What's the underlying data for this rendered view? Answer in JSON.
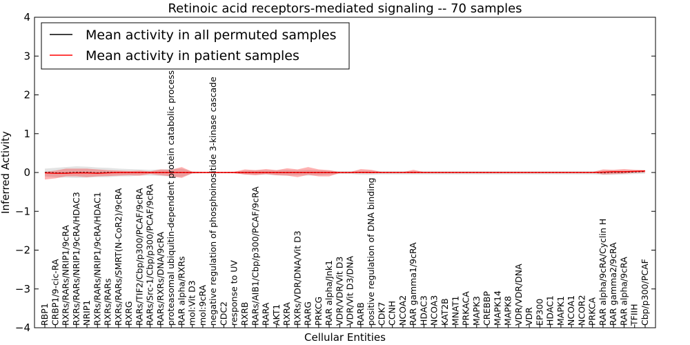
{
  "chart_data": {
    "type": "line",
    "title": "Retinoic acid receptors-mediated signaling -- 70 samples",
    "xlabel": "Cellular Entities",
    "ylabel": "Inferred Activity",
    "ylim": [
      -4,
      4
    ],
    "yticks": [
      4,
      3,
      2,
      1,
      0,
      -1,
      -2,
      -3,
      -4
    ],
    "ytick_labels": [
      "4",
      "3",
      "2",
      "1",
      "0",
      "−1",
      "−2",
      "−3",
      "−4"
    ],
    "grid": false,
    "legend_position": "top-left",
    "categories": [
      "RBP1",
      "CRBP1/9-cic-RA",
      "RXRs/RARs/NRIP1/9cRA",
      "RXRs/RARs/NRIP1/9cRA/HDAC3",
      "NRIP1",
      "RXRs/RARs/NRIP1/9cRA/HDAC1",
      "RXRs/RARs",
      "RXRs/RARs/SMRT(N-CoR2)/9cRA",
      "RXRG",
      "RARs/TIF2/Cbp/p300/PCAF/9cRA",
      "RARs/Src-1/Cbp/p300/PCAF/9cRA",
      "RARs/RXRs/DNA/9cRA",
      "proteasomal ubiquitin-dependent protein catabolic process",
      "RAR alpha/RXRs",
      "mol:Vit D3",
      "mol:9cRA",
      "negative regulation of phosphoinositide 3-kinase cascade",
      "CDC2",
      "response to UV",
      "RXRB",
      "RARs/AIB1/Cbp/p300/PCAF/9cRA",
      "RARA",
      "AKT1",
      "RXRA",
      "RXRs/VDR/DNA/Vit D3",
      "RARG",
      "PRKCG",
      "RAR alpha/Jnk1",
      "VDR/VDR/Vit D3",
      "VDR/Vit D3/DNA",
      "RARB",
      "positive regulation of DNA binding",
      "CDK7",
      "CCNH",
      "NCOA2",
      "RAR gamma1/9cRA",
      "HDAC3",
      "NCOA3",
      "KAT2B",
      "MNAT1",
      "PRKACA",
      "MAPK3",
      "CREBBP",
      "MAPK14",
      "MAPK8",
      "VDR/VDR/DNA",
      "VDR",
      "EP300",
      "HDAC1",
      "MAPK1",
      "NCOA1",
      "NCOR2",
      "PRKCA",
      "RAR alpha/9cRA/Cyclin H",
      "RAR gamma2/9cRA",
      "RAR alpha/9cRA",
      "TFIIH",
      "Cbp/p300/PCAF"
    ],
    "series": [
      {
        "name": "Mean activity in all permuted samples",
        "color": "#000000",
        "values": [
          0.0,
          -0.01,
          -0.01,
          0.0,
          0.0,
          -0.01,
          0.0,
          0.0,
          0.0,
          0.0,
          0.0,
          0.0,
          0.0,
          0.0,
          0.0,
          0.0,
          0.0,
          0.0,
          0.0,
          0.0,
          0.0,
          0.0,
          0.0,
          0.0,
          0.0,
          0.0,
          0.0,
          0.0,
          0.0,
          0.0,
          0.0,
          0.0,
          0.0,
          0.0,
          0.0,
          0.0,
          0.0,
          0.0,
          0.0,
          0.0,
          0.0,
          0.0,
          0.0,
          0.0,
          0.0,
          0.0,
          0.0,
          0.0,
          0.0,
          0.0,
          0.0,
          0.0,
          0.0,
          0.0,
          0.01,
          0.01,
          0.02,
          0.03
        ],
        "band_low": [
          -0.1,
          -0.12,
          -0.13,
          -0.14,
          -0.13,
          -0.12,
          -0.12,
          -0.1,
          -0.1,
          -0.08,
          -0.08,
          -0.09,
          -0.1,
          -0.11,
          -0.03,
          -0.02,
          -0.02,
          -0.02,
          -0.02,
          -0.05,
          -0.06,
          -0.06,
          -0.07,
          -0.08,
          -0.07,
          -0.08,
          -0.07,
          -0.06,
          -0.04,
          -0.04,
          -0.06,
          -0.06,
          -0.05,
          -0.05,
          -0.05,
          -0.05,
          -0.05,
          -0.05,
          -0.05,
          -0.05,
          -0.05,
          -0.05,
          -0.05,
          -0.05,
          -0.05,
          -0.05,
          -0.05,
          -0.05,
          -0.05,
          -0.05,
          -0.05,
          -0.05,
          -0.05,
          -0.06,
          -0.06,
          -0.05,
          -0.04,
          -0.03
        ],
        "band_high": [
          0.1,
          0.12,
          0.14,
          0.16,
          0.15,
          0.13,
          0.12,
          0.1,
          0.09,
          0.08,
          0.07,
          0.08,
          0.09,
          0.1,
          0.03,
          0.02,
          0.02,
          0.02,
          0.02,
          0.05,
          0.06,
          0.06,
          0.06,
          0.07,
          0.06,
          0.07,
          0.06,
          0.05,
          0.04,
          0.04,
          0.05,
          0.05,
          0.04,
          0.04,
          0.04,
          0.04,
          0.04,
          0.04,
          0.04,
          0.04,
          0.04,
          0.04,
          0.04,
          0.04,
          0.04,
          0.04,
          0.04,
          0.04,
          0.04,
          0.04,
          0.04,
          0.04,
          0.04,
          0.05,
          0.06,
          0.06,
          0.06,
          0.06
        ]
      },
      {
        "name": "Mean activity in patient samples",
        "color": "#ff0000",
        "values": [
          -0.01,
          -0.02,
          -0.02,
          -0.01,
          -0.01,
          -0.02,
          -0.01,
          0.0,
          0.0,
          0.0,
          0.0,
          0.0,
          0.0,
          0.0,
          0.0,
          0.0,
          0.0,
          0.0,
          0.0,
          0.0,
          0.0,
          0.0,
          0.0,
          0.0,
          0.0,
          0.0,
          0.0,
          0.0,
          0.0,
          0.0,
          0.0,
          0.0,
          0.0,
          0.0,
          0.0,
          0.0,
          0.0,
          0.0,
          0.0,
          0.0,
          0.0,
          0.0,
          0.0,
          0.0,
          0.0,
          0.0,
          0.0,
          0.0,
          0.0,
          0.0,
          0.0,
          0.0,
          0.0,
          0.01,
          0.02,
          0.02,
          0.03,
          0.04
        ],
        "band_low": [
          -0.18,
          -0.15,
          -0.1,
          -0.1,
          -0.12,
          -0.1,
          -0.09,
          -0.08,
          -0.07,
          -0.08,
          -0.04,
          -0.07,
          -0.1,
          -0.14,
          -0.02,
          -0.01,
          -0.01,
          -0.01,
          -0.02,
          -0.05,
          -0.07,
          -0.04,
          -0.07,
          -0.08,
          -0.12,
          -0.06,
          -0.1,
          -0.1,
          -0.01,
          -0.01,
          -0.01,
          -0.02,
          0.0,
          0.0,
          0.0,
          -0.02,
          0.0,
          0.0,
          0.0,
          0.0,
          0.0,
          0.0,
          0.0,
          0.0,
          0.0,
          0.0,
          0.0,
          0.0,
          0.0,
          0.0,
          0.0,
          0.0,
          0.0,
          -0.05,
          -0.04,
          -0.03,
          -0.01,
          0.0
        ],
        "band_high": [
          0.02,
          0.05,
          0.1,
          0.1,
          0.1,
          0.08,
          0.06,
          0.05,
          0.04,
          0.05,
          0.03,
          0.08,
          0.07,
          0.14,
          0.02,
          0.01,
          0.01,
          0.01,
          0.02,
          0.08,
          0.06,
          0.09,
          0.06,
          0.11,
          0.08,
          0.14,
          0.08,
          0.06,
          0.01,
          0.01,
          0.09,
          0.07,
          0.01,
          0.01,
          0.01,
          0.07,
          0.01,
          0.01,
          0.01,
          0.01,
          0.01,
          0.01,
          0.01,
          0.01,
          0.01,
          0.01,
          0.01,
          0.01,
          0.01,
          0.01,
          0.01,
          0.01,
          0.01,
          0.08,
          0.07,
          0.09,
          0.07,
          0.06
        ]
      }
    ]
  }
}
